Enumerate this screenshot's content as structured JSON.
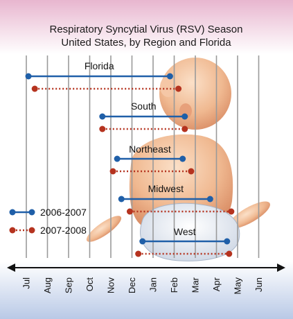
{
  "chart_data": {
    "type": "range",
    "title_lines": [
      "Respiratory Syncytial Virus (RSV) Season",
      "United States, by Region and Florida"
    ],
    "months": [
      "Jul",
      "Aug",
      "Sep",
      "Oct",
      "Nov",
      "Dec",
      "Jan",
      "Feb",
      "Mar",
      "Apr",
      "May",
      "Jun"
    ],
    "legend": [
      {
        "name": "2006-2007",
        "color": "#1f5fa8",
        "style": "solid"
      },
      {
        "name": "2007-2008",
        "color": "#b5331f",
        "style": "dotted"
      }
    ],
    "regions": [
      {
        "name": "Florida",
        "s1": [
          0.1,
          6.8
        ],
        "s2": [
          0.4,
          7.2
        ]
      },
      {
        "name": "South",
        "s1": [
          3.6,
          7.5
        ],
        "s2": [
          3.6,
          7.5
        ]
      },
      {
        "name": "Northeast",
        "s1": [
          4.3,
          7.4
        ],
        "s2": [
          4.1,
          7.8
        ]
      },
      {
        "name": "Midwest",
        "s1": [
          4.5,
          8.7
        ],
        "s2": [
          4.9,
          9.7
        ]
      },
      {
        "name": "West",
        "s1": [
          5.5,
          9.5
        ],
        "s2": [
          5.3,
          9.6
        ]
      }
    ]
  }
}
